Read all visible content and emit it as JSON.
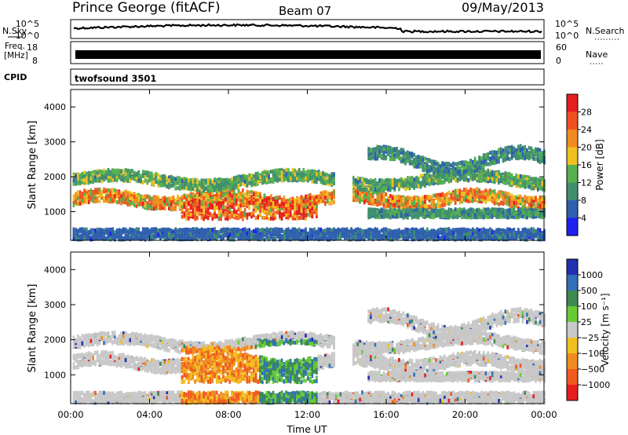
{
  "header": {
    "station": "Prince George (fitACF)",
    "beam": "Beam 07",
    "date": "09/May/2013"
  },
  "strips": {
    "nsky_label": "N.Sky",
    "nsearch_label": "N.Search",
    "power_ticks_left": [
      "10^5",
      "10^0"
    ],
    "power_ticks_right": [
      "10^5",
      "10^0"
    ],
    "freq_label_1": "Freq.",
    "freq_label_2": "[MHz]",
    "freq_ticks": [
      "18",
      "8"
    ],
    "nave_label": "Nave",
    "nave_ticks": [
      "60",
      "0"
    ],
    "cpid_label": "CPID",
    "cpid_value": "twofsound 3501"
  },
  "chart_data": [
    {
      "type": "heatmap",
      "title": "",
      "xlabel": "",
      "ylabel": "Slant Range [km]",
      "y_ticks": [
        "1000",
        "2000",
        "3000",
        "4000"
      ],
      "ylim": [
        180,
        4500
      ],
      "colorbar": {
        "label": "Power [dB]",
        "ticks": [
          "4",
          "8",
          "12",
          "16",
          "20",
          "24",
          "28"
        ],
        "colors": [
          "#1f1ff0",
          "#2f5faf",
          "#3f8f6f",
          "#55b04f",
          "#f0c020",
          "#f08c20",
          "#f05020",
          "#e61e1e"
        ]
      }
    },
    {
      "type": "heatmap",
      "title": "",
      "xlabel": "Time UT",
      "ylabel": "Slant Range [km]",
      "y_ticks": [
        "1000",
        "2000",
        "3000",
        "4000"
      ],
      "x_ticks": [
        "00:00",
        "04:00",
        "08:00",
        "12:00",
        "16:00",
        "20:00",
        "00:00"
      ],
      "ylim": [
        180,
        4500
      ],
      "colorbar": {
        "label": "Velocity [m s⁻¹]",
        "ticks": [
          "1000",
          "500",
          "100",
          "25",
          "−25",
          "−100",
          "−500",
          "−1000"
        ],
        "colors": [
          "#2230b0",
          "#3070b8",
          "#3c8a50",
          "#66cc33",
          "#c8c8c8",
          "#f0c020",
          "#f08c20",
          "#f05a20",
          "#e61e1e"
        ]
      }
    }
  ]
}
